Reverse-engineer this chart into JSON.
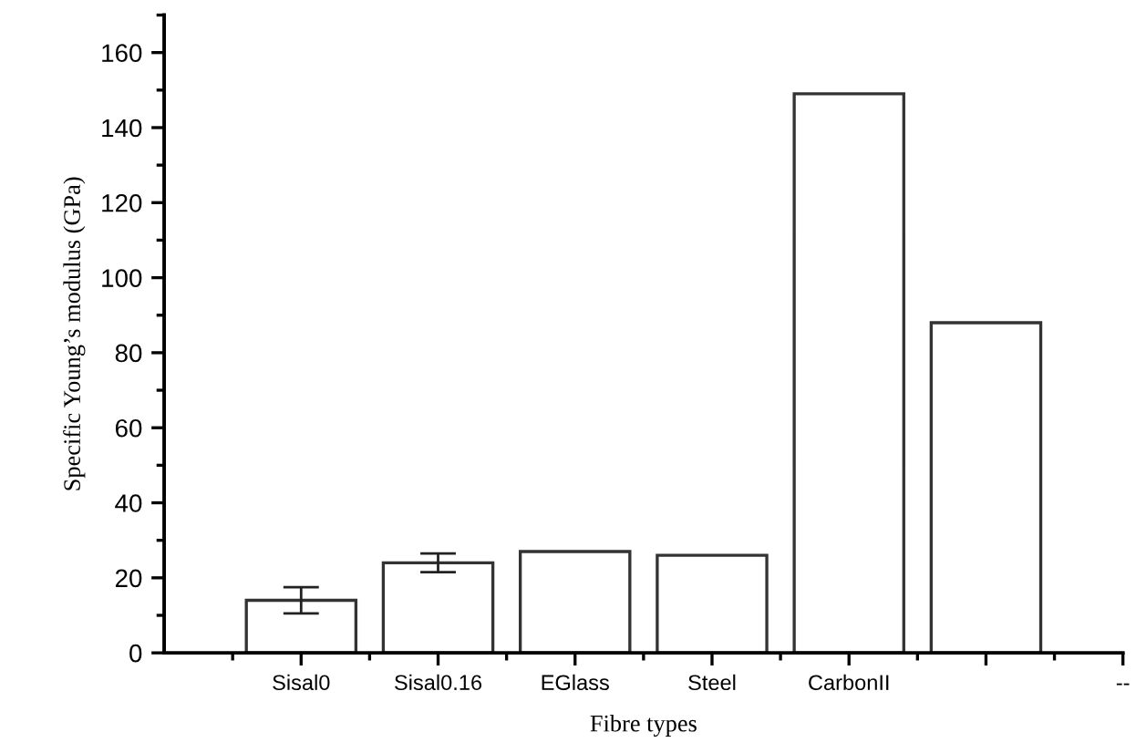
{
  "chart_data": {
    "type": "bar",
    "xlabel": "Fibre types",
    "ylabel": "Specific Young’s modulus (GPa)",
    "categories": [
      "Sisal0",
      "Sisal0.16",
      "EGlass",
      "Steel",
      "CarbonII",
      null,
      "--"
    ],
    "values": [
      14,
      24,
      27,
      26,
      149,
      88,
      null
    ],
    "errors": [
      3.5,
      2.5,
      null,
      null,
      null,
      null,
      null
    ],
    "color": "#ffffff",
    "ylim": [
      0,
      170
    ],
    "yticks": [
      0,
      20,
      40,
      60,
      80,
      100,
      120,
      140,
      160
    ],
    "grid": false,
    "legend": false
  }
}
